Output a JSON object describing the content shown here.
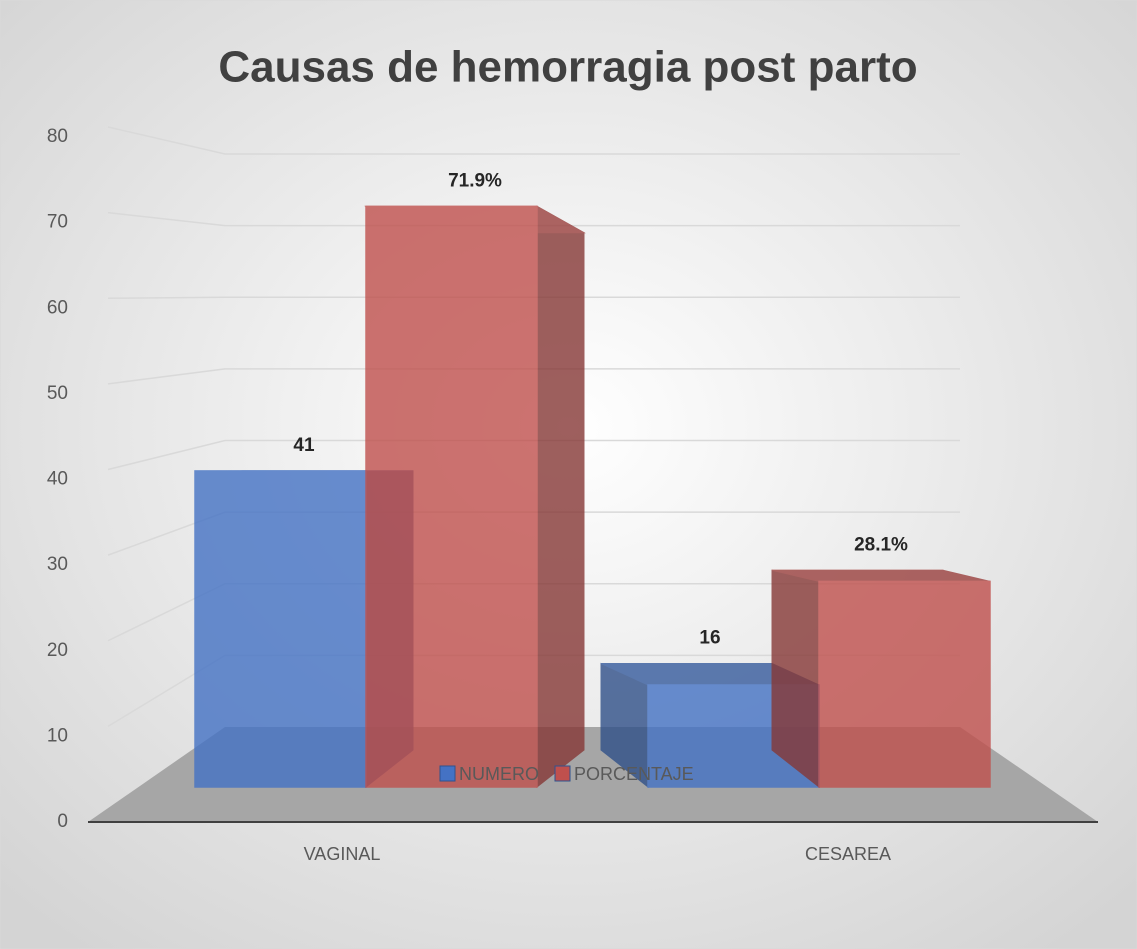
{
  "chart_data": {
    "type": "bar3d",
    "title": "Causas de hemorragia post parto",
    "categories": [
      "VAGINAL",
      "CESAREA"
    ],
    "series": [
      {
        "name": "NUMERO",
        "color": "#4472c4",
        "values": [
          41,
          16
        ]
      },
      {
        "name": "PORCENTAJE",
        "color": "#c0504d",
        "values": [
          71.9,
          28.1
        ],
        "value_labels": [
          "71.9%",
          "28.1%"
        ]
      }
    ],
    "ylim": [
      0,
      80
    ],
    "yticks": [
      0,
      10,
      20,
      30,
      40,
      50,
      60,
      70,
      80
    ],
    "grid": true,
    "legend": "bottom"
  }
}
